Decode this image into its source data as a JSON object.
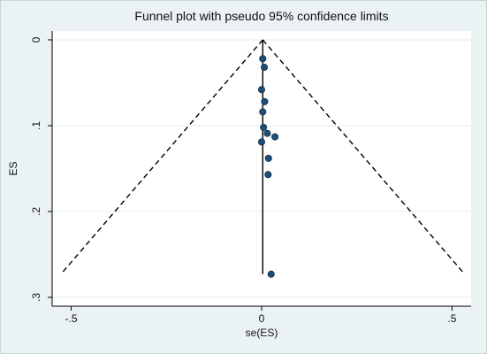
{
  "chart_data": {
    "type": "scatter",
    "title": "Funnel plot with pseudo 95% confidence limits",
    "xlabel": "se(ES)",
    "ylabel": "ES",
    "xlim": [
      -0.55,
      0.55
    ],
    "ylim": [
      0,
      0.3
    ],
    "y_reversed": true,
    "x_ticks": [
      -0.5,
      0,
      0.5
    ],
    "x_tick_labels": [
      "-.5",
      "0",
      ".5"
    ],
    "y_ticks": [
      0,
      0.1,
      0.2,
      0.3
    ],
    "y_tick_labels": [
      "0",
      ".1",
      ".2",
      ".3"
    ],
    "grid": true,
    "points": [
      {
        "x": 0.003,
        "y": 0.022
      },
      {
        "x": 0.007,
        "y": 0.032
      },
      {
        "x": 0.0,
        "y": 0.058
      },
      {
        "x": 0.008,
        "y": 0.072
      },
      {
        "x": 0.003,
        "y": 0.084
      },
      {
        "x": 0.005,
        "y": 0.102
      },
      {
        "x": 0.015,
        "y": 0.109
      },
      {
        "x": 0.035,
        "y": 0.113
      },
      {
        "x": 0.0,
        "y": 0.119
      },
      {
        "x": 0.018,
        "y": 0.138
      },
      {
        "x": 0.017,
        "y": 0.157
      },
      {
        "x": 0.025,
        "y": 0.273
      }
    ],
    "pooled_line": {
      "x": 0.003,
      "y_from": 0,
      "y_to": 0.273
    },
    "funnel_limits": {
      "apex": {
        "x": 0.003,
        "y": 0
      },
      "left_end": {
        "x": -0.527,
        "y": 0.273
      },
      "right_end": {
        "x": 0.533,
        "y": 0.273
      }
    },
    "colors": {
      "marker": "#1f4e79",
      "marker_stroke": "#0d2a45",
      "plot_background": "#ffffff",
      "outer_background": "#eaf2f3",
      "line": "#000000"
    }
  }
}
